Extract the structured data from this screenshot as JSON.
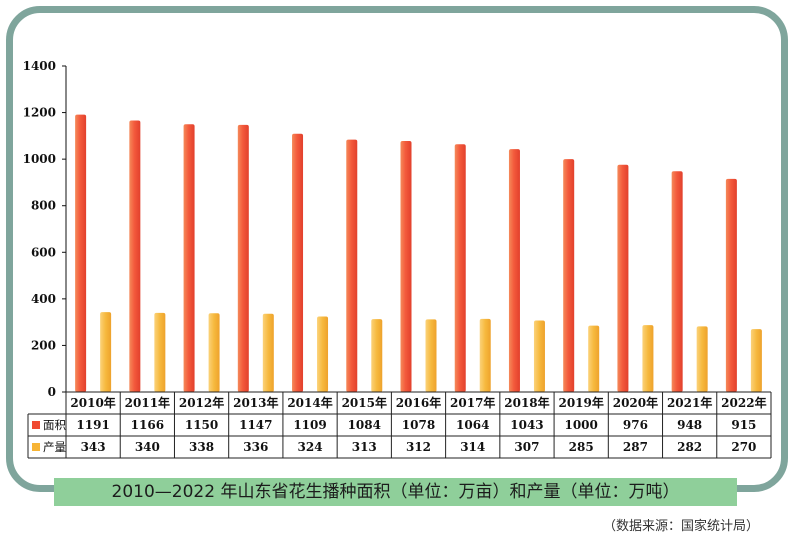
{
  "chart_data": {
    "type": "bar",
    "categories": [
      "2010年",
      "2011年",
      "2012年",
      "2013年",
      "2014年",
      "2015年",
      "2016年",
      "2017年",
      "2018年",
      "2019年",
      "2020年",
      "2021年",
      "2022年"
    ],
    "series": [
      {
        "name": "面积",
        "values": [
          1191,
          1166,
          1150,
          1147,
          1109,
          1084,
          1078,
          1064,
          1043,
          1000,
          976,
          948,
          915
        ],
        "color": "#f04a32"
      },
      {
        "name": "产量",
        "values": [
          343,
          340,
          338,
          336,
          324,
          313,
          312,
          314,
          307,
          285,
          287,
          282,
          270
        ],
        "color": "#f7b435"
      }
    ],
    "ylim": [
      0,
      1400
    ],
    "yticks": [
      0,
      200,
      400,
      600,
      800,
      1000,
      1200,
      1400
    ],
    "grid": false,
    "data_table": true,
    "title": "2010—2022 年山东省花生播种面积（单位：万亩）和产量（单位：万吨）",
    "source": "（数据来源：国家统计局）"
  },
  "colors": {
    "frame": "#7fa59c",
    "caption_bg": "#8fcf9a"
  }
}
